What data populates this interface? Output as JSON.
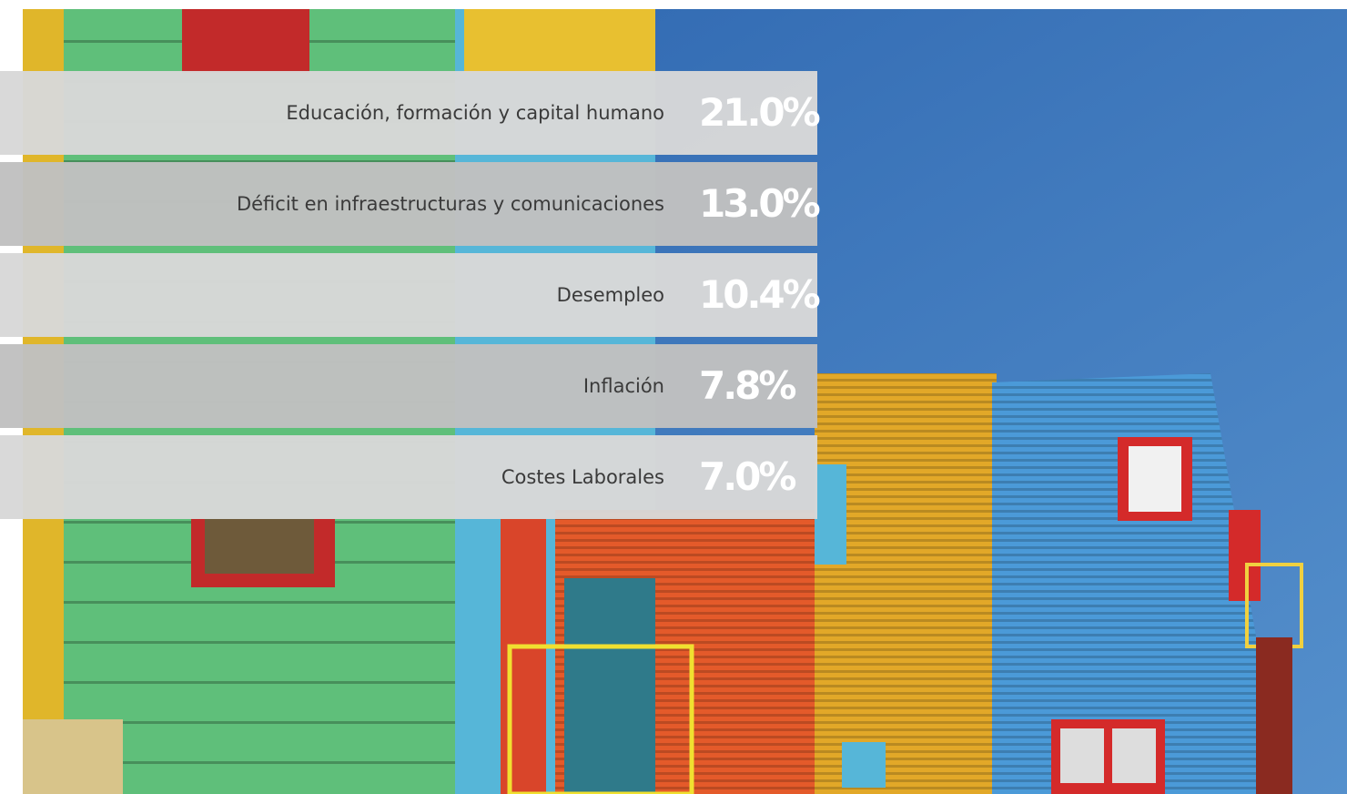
{
  "rows": [
    {
      "label": "Educación, formación y capital humano",
      "value": "21.0%"
    },
    {
      "label": "Déficit en infraestructuras y comunicaciones",
      "value": "13.0%"
    },
    {
      "label": "Desempleo",
      "value": "10.4%"
    },
    {
      "label": "Inflación",
      "value": "7.8%"
    },
    {
      "label": "Costes Laborales",
      "value": "7.0%"
    }
  ]
}
